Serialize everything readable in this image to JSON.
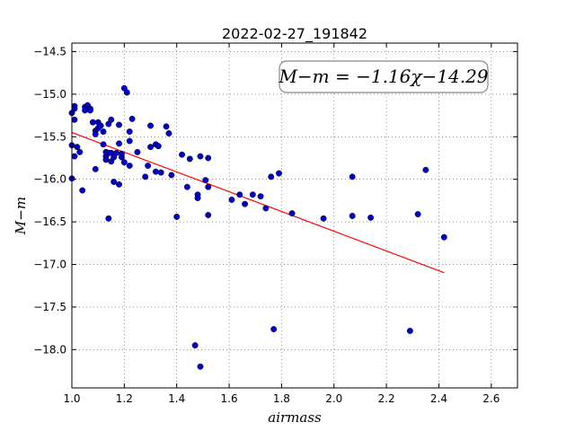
{
  "chart_data": {
    "type": "scatter",
    "title": "2022-02-27_191842",
    "xlabel": "airmass",
    "ylabel": "M−m",
    "xlim": [
      1.0,
      2.7
    ],
    "ylim": [
      -18.45,
      -14.4
    ],
    "y_inverted": true,
    "grid": true,
    "x_ticks": [
      "1.0",
      "1.2",
      "1.4",
      "1.6",
      "1.8",
      "2.0",
      "2.2",
      "2.4",
      "2.6"
    ],
    "y_ticks": [
      "−14.5",
      "−15.0",
      "−15.5",
      "−16.0",
      "−16.5",
      "−17.0",
      "−17.5",
      "−18.0"
    ],
    "annotation": "M−m = −1.16χ−14.29",
    "marker_color": "#0000cc",
    "fit_color": "#ff0000",
    "fit": {
      "slope": -1.16,
      "intercept": -14.29,
      "x_range": [
        1.0,
        2.42
      ]
    },
    "points": [
      [
        1.0,
        -15.22
      ],
      [
        1.01,
        -15.14
      ],
      [
        1.01,
        -15.17
      ],
      [
        1.01,
        -15.3
      ],
      [
        1.0,
        -15.6
      ],
      [
        1.02,
        -15.62
      ],
      [
        1.01,
        -15.73
      ],
      [
        1.0,
        -15.99
      ],
      [
        1.03,
        -15.68
      ],
      [
        1.04,
        -16.13
      ],
      [
        1.05,
        -15.15
      ],
      [
        1.05,
        -15.19
      ],
      [
        1.06,
        -15.13
      ],
      [
        1.07,
        -15.17
      ],
      [
        1.07,
        -15.19
      ],
      [
        1.08,
        -15.33
      ],
      [
        1.09,
        -15.43
      ],
      [
        1.09,
        -15.47
      ],
      [
        1.1,
        -15.33
      ],
      [
        1.1,
        -15.4
      ],
      [
        1.09,
        -15.88
      ],
      [
        1.11,
        -15.37
      ],
      [
        1.12,
        -15.59
      ],
      [
        1.12,
        -15.44
      ],
      [
        1.13,
        -15.68
      ],
      [
        1.13,
        -15.73
      ],
      [
        1.13,
        -15.77
      ],
      [
        1.14,
        -15.69
      ],
      [
        1.14,
        -15.35
      ],
      [
        1.15,
        -15.3
      ],
      [
        1.15,
        -15.79
      ],
      [
        1.15,
        -15.69
      ],
      [
        1.16,
        -15.71
      ],
      [
        1.16,
        -15.74
      ],
      [
        1.16,
        -16.03
      ],
      [
        1.17,
        -15.69
      ],
      [
        1.18,
        -15.36
      ],
      [
        1.18,
        -16.06
      ],
      [
        1.18,
        -15.58
      ],
      [
        1.19,
        -15.7
      ],
      [
        1.19,
        -15.74
      ],
      [
        1.2,
        -15.8
      ],
      [
        1.2,
        -14.93
      ],
      [
        1.21,
        -14.98
      ],
      [
        1.22,
        -15.44
      ],
      [
        1.22,
        -15.55
      ],
      [
        1.22,
        -15.84
      ],
      [
        1.23,
        -15.29
      ],
      [
        1.14,
        -16.46
      ],
      [
        1.25,
        -15.68
      ],
      [
        1.28,
        -15.97
      ],
      [
        1.29,
        -15.84
      ],
      [
        1.3,
        -15.62
      ],
      [
        1.3,
        -15.37
      ],
      [
        1.32,
        -15.59
      ],
      [
        1.32,
        -15.91
      ],
      [
        1.33,
        -15.61
      ],
      [
        1.34,
        -15.92
      ],
      [
        1.36,
        -15.38
      ],
      [
        1.37,
        -15.46
      ],
      [
        1.38,
        -15.95
      ],
      [
        1.4,
        -16.44
      ],
      [
        1.42,
        -15.71
      ],
      [
        1.44,
        -16.09
      ],
      [
        1.45,
        -15.76
      ],
      [
        1.48,
        -16.18
      ],
      [
        1.48,
        -16.22
      ],
      [
        1.49,
        -15.73
      ],
      [
        1.51,
        -16.01
      ],
      [
        1.52,
        -16.09
      ],
      [
        1.52,
        -15.75
      ],
      [
        1.52,
        -16.42
      ],
      [
        1.47,
        -17.95
      ],
      [
        1.49,
        -18.2
      ],
      [
        1.61,
        -16.24
      ],
      [
        1.64,
        -16.18
      ],
      [
        1.66,
        -16.29
      ],
      [
        1.69,
        -16.18
      ],
      [
        1.72,
        -16.2
      ],
      [
        1.74,
        -16.34
      ],
      [
        1.76,
        -15.97
      ],
      [
        1.77,
        -17.76
      ],
      [
        1.79,
        -15.93
      ],
      [
        1.84,
        -16.4
      ],
      [
        1.96,
        -16.46
      ],
      [
        2.07,
        -15.97
      ],
      [
        2.07,
        -16.43
      ],
      [
        2.14,
        -16.45
      ],
      [
        2.29,
        -17.78
      ],
      [
        2.32,
        -16.41
      ],
      [
        2.35,
        -15.89
      ],
      [
        2.42,
        -16.68
      ]
    ]
  }
}
